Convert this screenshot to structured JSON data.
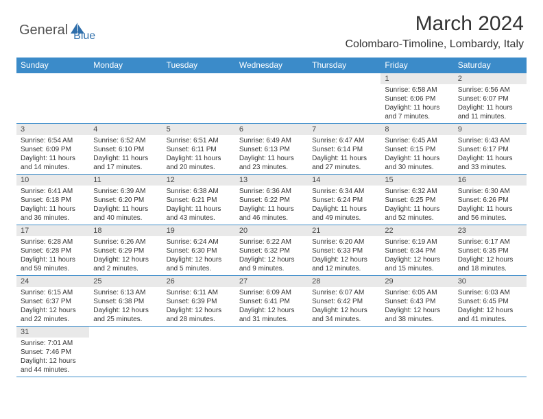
{
  "logo": {
    "part1": "General",
    "part2": "Blue"
  },
  "title": "March 2024",
  "location": "Colombaro-Timoline, Lombardy, Italy",
  "colors": {
    "header_bg": "#3b8bc9",
    "header_text": "#ffffff",
    "daynum_bg": "#e9e9e9",
    "border": "#3b8bc9",
    "logo_blue": "#2f6fab"
  },
  "day_headers": [
    "Sunday",
    "Monday",
    "Tuesday",
    "Wednesday",
    "Thursday",
    "Friday",
    "Saturday"
  ],
  "weeks": [
    [
      {
        "n": "",
        "sr": "",
        "ss": "",
        "dl": ""
      },
      {
        "n": "",
        "sr": "",
        "ss": "",
        "dl": ""
      },
      {
        "n": "",
        "sr": "",
        "ss": "",
        "dl": ""
      },
      {
        "n": "",
        "sr": "",
        "ss": "",
        "dl": ""
      },
      {
        "n": "",
        "sr": "",
        "ss": "",
        "dl": ""
      },
      {
        "n": "1",
        "sr": "Sunrise: 6:58 AM",
        "ss": "Sunset: 6:06 PM",
        "dl": "Daylight: 11 hours and 7 minutes."
      },
      {
        "n": "2",
        "sr": "Sunrise: 6:56 AM",
        "ss": "Sunset: 6:07 PM",
        "dl": "Daylight: 11 hours and 11 minutes."
      }
    ],
    [
      {
        "n": "3",
        "sr": "Sunrise: 6:54 AM",
        "ss": "Sunset: 6:09 PM",
        "dl": "Daylight: 11 hours and 14 minutes."
      },
      {
        "n": "4",
        "sr": "Sunrise: 6:52 AM",
        "ss": "Sunset: 6:10 PM",
        "dl": "Daylight: 11 hours and 17 minutes."
      },
      {
        "n": "5",
        "sr": "Sunrise: 6:51 AM",
        "ss": "Sunset: 6:11 PM",
        "dl": "Daylight: 11 hours and 20 minutes."
      },
      {
        "n": "6",
        "sr": "Sunrise: 6:49 AM",
        "ss": "Sunset: 6:13 PM",
        "dl": "Daylight: 11 hours and 23 minutes."
      },
      {
        "n": "7",
        "sr": "Sunrise: 6:47 AM",
        "ss": "Sunset: 6:14 PM",
        "dl": "Daylight: 11 hours and 27 minutes."
      },
      {
        "n": "8",
        "sr": "Sunrise: 6:45 AM",
        "ss": "Sunset: 6:15 PM",
        "dl": "Daylight: 11 hours and 30 minutes."
      },
      {
        "n": "9",
        "sr": "Sunrise: 6:43 AM",
        "ss": "Sunset: 6:17 PM",
        "dl": "Daylight: 11 hours and 33 minutes."
      }
    ],
    [
      {
        "n": "10",
        "sr": "Sunrise: 6:41 AM",
        "ss": "Sunset: 6:18 PM",
        "dl": "Daylight: 11 hours and 36 minutes."
      },
      {
        "n": "11",
        "sr": "Sunrise: 6:39 AM",
        "ss": "Sunset: 6:20 PM",
        "dl": "Daylight: 11 hours and 40 minutes."
      },
      {
        "n": "12",
        "sr": "Sunrise: 6:38 AM",
        "ss": "Sunset: 6:21 PM",
        "dl": "Daylight: 11 hours and 43 minutes."
      },
      {
        "n": "13",
        "sr": "Sunrise: 6:36 AM",
        "ss": "Sunset: 6:22 PM",
        "dl": "Daylight: 11 hours and 46 minutes."
      },
      {
        "n": "14",
        "sr": "Sunrise: 6:34 AM",
        "ss": "Sunset: 6:24 PM",
        "dl": "Daylight: 11 hours and 49 minutes."
      },
      {
        "n": "15",
        "sr": "Sunrise: 6:32 AM",
        "ss": "Sunset: 6:25 PM",
        "dl": "Daylight: 11 hours and 52 minutes."
      },
      {
        "n": "16",
        "sr": "Sunrise: 6:30 AM",
        "ss": "Sunset: 6:26 PM",
        "dl": "Daylight: 11 hours and 56 minutes."
      }
    ],
    [
      {
        "n": "17",
        "sr": "Sunrise: 6:28 AM",
        "ss": "Sunset: 6:28 PM",
        "dl": "Daylight: 11 hours and 59 minutes."
      },
      {
        "n": "18",
        "sr": "Sunrise: 6:26 AM",
        "ss": "Sunset: 6:29 PM",
        "dl": "Daylight: 12 hours and 2 minutes."
      },
      {
        "n": "19",
        "sr": "Sunrise: 6:24 AM",
        "ss": "Sunset: 6:30 PM",
        "dl": "Daylight: 12 hours and 5 minutes."
      },
      {
        "n": "20",
        "sr": "Sunrise: 6:22 AM",
        "ss": "Sunset: 6:32 PM",
        "dl": "Daylight: 12 hours and 9 minutes."
      },
      {
        "n": "21",
        "sr": "Sunrise: 6:20 AM",
        "ss": "Sunset: 6:33 PM",
        "dl": "Daylight: 12 hours and 12 minutes."
      },
      {
        "n": "22",
        "sr": "Sunrise: 6:19 AM",
        "ss": "Sunset: 6:34 PM",
        "dl": "Daylight: 12 hours and 15 minutes."
      },
      {
        "n": "23",
        "sr": "Sunrise: 6:17 AM",
        "ss": "Sunset: 6:35 PM",
        "dl": "Daylight: 12 hours and 18 minutes."
      }
    ],
    [
      {
        "n": "24",
        "sr": "Sunrise: 6:15 AM",
        "ss": "Sunset: 6:37 PM",
        "dl": "Daylight: 12 hours and 22 minutes."
      },
      {
        "n": "25",
        "sr": "Sunrise: 6:13 AM",
        "ss": "Sunset: 6:38 PM",
        "dl": "Daylight: 12 hours and 25 minutes."
      },
      {
        "n": "26",
        "sr": "Sunrise: 6:11 AM",
        "ss": "Sunset: 6:39 PM",
        "dl": "Daylight: 12 hours and 28 minutes."
      },
      {
        "n": "27",
        "sr": "Sunrise: 6:09 AM",
        "ss": "Sunset: 6:41 PM",
        "dl": "Daylight: 12 hours and 31 minutes."
      },
      {
        "n": "28",
        "sr": "Sunrise: 6:07 AM",
        "ss": "Sunset: 6:42 PM",
        "dl": "Daylight: 12 hours and 34 minutes."
      },
      {
        "n": "29",
        "sr": "Sunrise: 6:05 AM",
        "ss": "Sunset: 6:43 PM",
        "dl": "Daylight: 12 hours and 38 minutes."
      },
      {
        "n": "30",
        "sr": "Sunrise: 6:03 AM",
        "ss": "Sunset: 6:45 PM",
        "dl": "Daylight: 12 hours and 41 minutes."
      }
    ],
    [
      {
        "n": "31",
        "sr": "Sunrise: 7:01 AM",
        "ss": "Sunset: 7:46 PM",
        "dl": "Daylight: 12 hours and 44 minutes."
      },
      {
        "n": "",
        "sr": "",
        "ss": "",
        "dl": ""
      },
      {
        "n": "",
        "sr": "",
        "ss": "",
        "dl": ""
      },
      {
        "n": "",
        "sr": "",
        "ss": "",
        "dl": ""
      },
      {
        "n": "",
        "sr": "",
        "ss": "",
        "dl": ""
      },
      {
        "n": "",
        "sr": "",
        "ss": "",
        "dl": ""
      },
      {
        "n": "",
        "sr": "",
        "ss": "",
        "dl": ""
      }
    ]
  ]
}
